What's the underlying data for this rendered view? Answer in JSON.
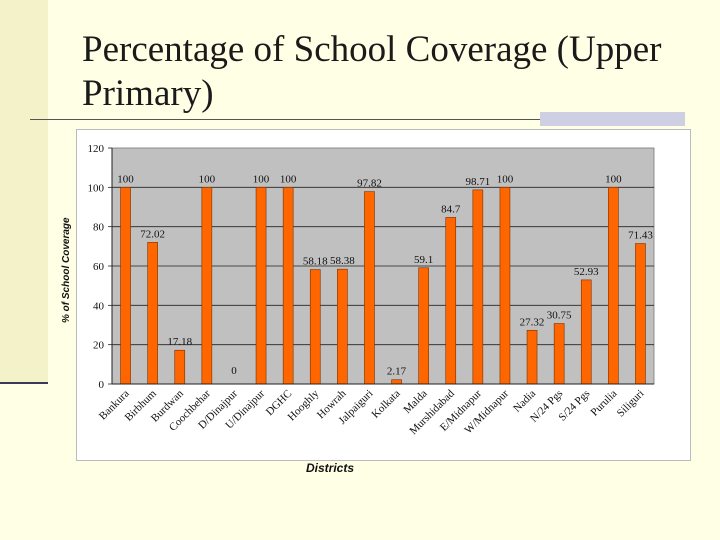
{
  "slide": {
    "title": "Percentage of School Coverage (Upper Primary)"
  },
  "colors": {
    "bar": "#ff6600",
    "bar_stroke": "#7a2f00",
    "plot_bg": "#c0c0c0"
  },
  "chart_data": {
    "type": "bar",
    "title": "",
    "xlabel": "Districts",
    "ylabel": "% of School Coverage",
    "ylim": [
      0,
      120
    ],
    "yticks": [
      0,
      20,
      40,
      60,
      80,
      100,
      120
    ],
    "grid": "horizontal",
    "categories": [
      "Bankura",
      "Birbhum",
      "Burdwan",
      "Coochbehar",
      "D/Dinajpur",
      "U/Dinajpur",
      "DGHC",
      "Hooghly",
      "Howrah",
      "Jalpaiguri",
      "Kolkata",
      "Malda",
      "Murshidabad",
      "E/Midnapur",
      "W/Midnapur",
      "Nadia",
      "N/24 Pgs",
      "S/24 Pgs",
      "Purulia",
      "Siliguri"
    ],
    "values": [
      100,
      72.02,
      17.18,
      100,
      0,
      100,
      100,
      58.18,
      58.38,
      97.82,
      2.17,
      59.1,
      84.7,
      98.71,
      100,
      27.32,
      30.75,
      52.93,
      100,
      71.43
    ],
    "value_labels": [
      "100",
      "72.02",
      "17.18",
      "100",
      "0",
      "100",
      "100",
      "58.18",
      "58.38",
      "97.82",
      "2.17",
      "59.1",
      "84.7",
      "98.71",
      "100",
      "27.32",
      "30.75",
      "52.93",
      "100",
      "71.43"
    ]
  }
}
